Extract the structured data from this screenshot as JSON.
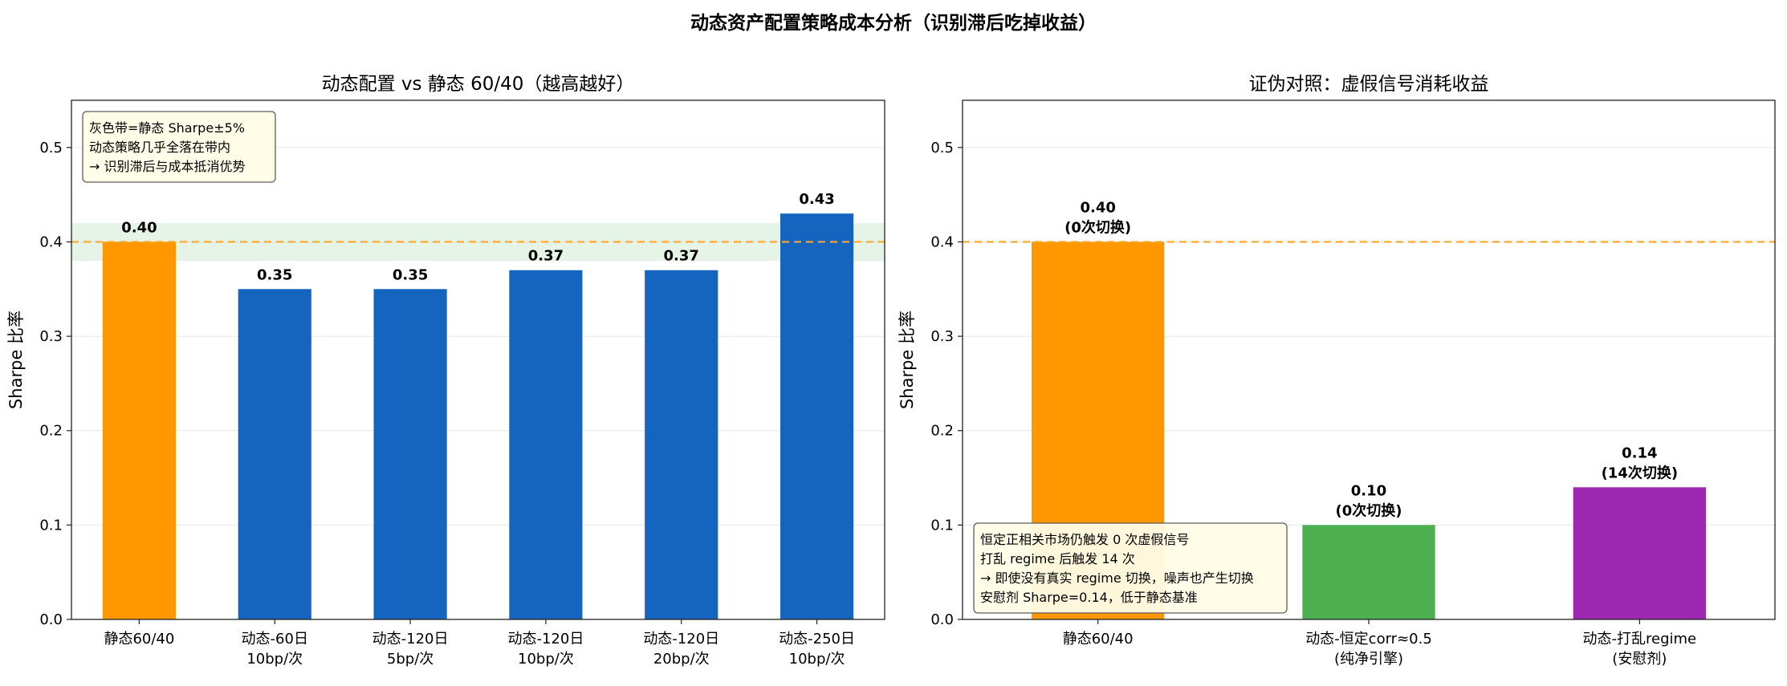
{
  "figure_title": "动态资产配置策略成本分析（识别滞后吃掉收益）",
  "colors": {
    "static": "#FF9800",
    "dynamic": "#1565C0",
    "constant_corr": "#4CAF50",
    "shuffled": "#9C27B0",
    "baseline_line": "#FFA726",
    "band": "#C8E6C9",
    "note_bg": "#FFFDE7"
  },
  "chart_data": [
    {
      "type": "bar",
      "title": "动态配置 vs 静态 60/40（越高越好）",
      "ylabel": "Sharpe 比率",
      "ylim": [
        0,
        0.55
      ],
      "yticks": [
        "0.0",
        "0.1",
        "0.2",
        "0.3",
        "0.4",
        "0.5"
      ],
      "grid": true,
      "baseline": 0.4,
      "band": [
        0.38,
        0.42
      ],
      "categories": [
        [
          "静态60/40"
        ],
        [
          "动态-60日",
          "10bp/次"
        ],
        [
          "动态-120日",
          "5bp/次"
        ],
        [
          "动态-120日",
          "10bp/次"
        ],
        [
          "动态-120日",
          "20bp/次"
        ],
        [
          "动态-250日",
          "10bp/次"
        ]
      ],
      "values": [
        0.4,
        0.35,
        0.35,
        0.37,
        0.37,
        0.43
      ],
      "value_labels": [
        [
          "0.40"
        ],
        [
          "0.35"
        ],
        [
          "0.35"
        ],
        [
          "0.37"
        ],
        [
          "0.37"
        ],
        [
          "0.43"
        ]
      ],
      "bar_colors": [
        "static",
        "dynamic",
        "dynamic",
        "dynamic",
        "dynamic",
        "dynamic"
      ],
      "annotation": {
        "placement": "top-left",
        "lines": [
          "灰色带=静态 Sharpe±5%",
          "动态策略几乎全落在带内",
          "→ 识别滞后与成本抵消优势"
        ]
      }
    },
    {
      "type": "bar",
      "title": "证伪对照：虚假信号消耗收益",
      "ylabel": "Sharpe 比率",
      "ylim": [
        0,
        0.55
      ],
      "yticks": [
        "0.0",
        "0.1",
        "0.2",
        "0.3",
        "0.4",
        "0.5"
      ],
      "grid": true,
      "baseline": 0.4,
      "categories": [
        [
          "静态60/40"
        ],
        [
          "动态-恒定corr≈0.5",
          "(纯净引擎)"
        ],
        [
          "动态-打乱regime",
          "(安慰剂)"
        ]
      ],
      "values": [
        0.4,
        0.1,
        0.14
      ],
      "value_labels": [
        [
          "0.40",
          "(0次切换)"
        ],
        [
          "0.10",
          "(0次切换)"
        ],
        [
          "0.14",
          "(14次切换)"
        ]
      ],
      "bar_colors": [
        "static",
        "constant_corr",
        "shuffled"
      ],
      "annotation": {
        "placement": "bottom-left",
        "lines": [
          "恒定正相关市场仍触发 0 次虚假信号",
          "打乱 regime 后触发 14 次",
          "→ 即使没有真实 regime 切换，噪声也产生切换",
          "安慰剂 Sharpe=0.14，低于静态基准"
        ]
      }
    }
  ]
}
